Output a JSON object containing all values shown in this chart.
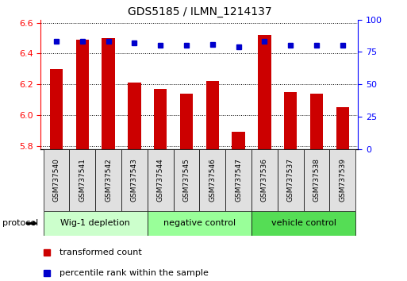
{
  "title": "GDS5185 / ILMN_1214137",
  "samples": [
    "GSM737540",
    "GSM737541",
    "GSM737542",
    "GSM737543",
    "GSM737544",
    "GSM737545",
    "GSM737546",
    "GSM737547",
    "GSM737536",
    "GSM737537",
    "GSM737538",
    "GSM737539"
  ],
  "red_values": [
    6.3,
    6.49,
    6.5,
    6.21,
    6.17,
    6.14,
    6.22,
    5.89,
    6.52,
    6.15,
    6.14,
    6.05
  ],
  "blue_values": [
    83,
    83,
    83,
    82,
    80,
    80,
    81,
    79,
    83,
    80,
    80,
    80
  ],
  "group_boundaries": [
    {
      "label": "Wig-1 depletion",
      "start": 0,
      "end": 4,
      "color": "#ccffcc"
    },
    {
      "label": "negative control",
      "start": 4,
      "end": 8,
      "color": "#99ff99"
    },
    {
      "label": "vehicle control",
      "start": 8,
      "end": 12,
      "color": "#55dd55"
    }
  ],
  "ylim_left": [
    5.78,
    6.62
  ],
  "ylim_right": [
    0,
    100
  ],
  "yticks_left": [
    5.8,
    6.0,
    6.2,
    6.4,
    6.6
  ],
  "yticks_right": [
    0,
    25,
    50,
    75,
    100
  ],
  "bar_color": "#cc0000",
  "dot_color": "#0000cc",
  "bar_width": 0.5,
  "background_color": "#ffffff",
  "legend_red": "transformed count",
  "legend_blue": "percentile rank within the sample",
  "protocol_label": "protocol"
}
